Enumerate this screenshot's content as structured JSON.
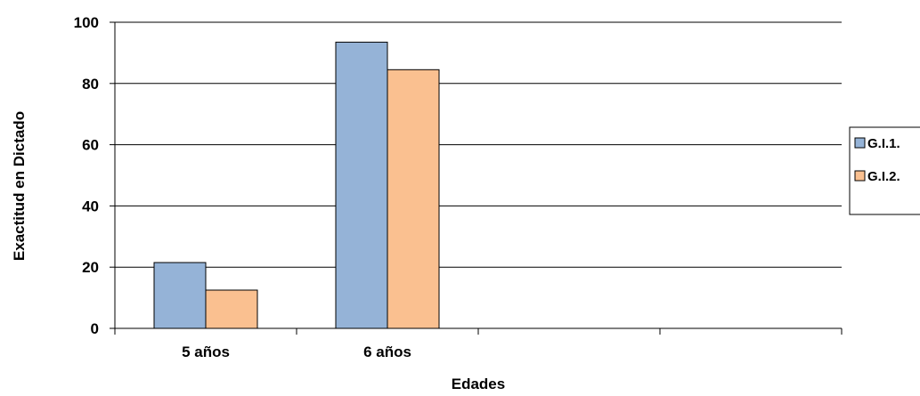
{
  "chart_data": {
    "type": "bar",
    "title": "",
    "xlabel": "Edades",
    "ylabel": "Exactitud en Dictado",
    "categories": [
      "5 años",
      "6 años",
      "",
      ""
    ],
    "series": [
      {
        "name": "G.I.1.",
        "values": [
          21.5,
          93.5,
          null,
          null
        ],
        "color": "#95B3D7"
      },
      {
        "name": "G.I.2.",
        "values": [
          12.5,
          84.5,
          null,
          null
        ],
        "color": "#FAC090"
      }
    ],
    "ylim": [
      0,
      100
    ],
    "yticks": [
      0,
      20,
      40,
      60,
      80,
      100
    ],
    "grid": true,
    "legend_position": "right"
  }
}
